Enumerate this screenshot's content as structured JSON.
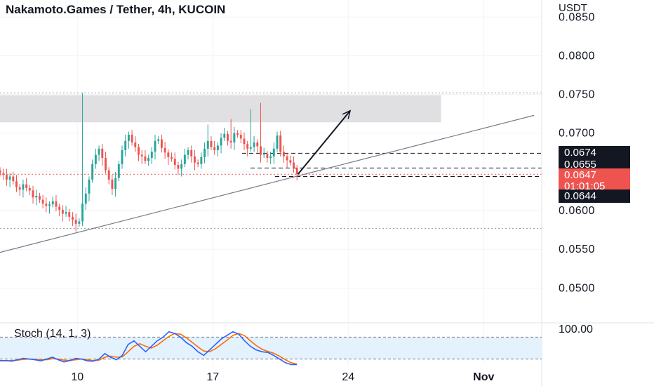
{
  "header": {
    "title": "Nakamoto.Games / Tether, 4h, KUCOIN",
    "currency": "USDT"
  },
  "indicator": {
    "label": "Stoch (14, 1, 3)"
  },
  "price_labels": {
    "upper": "0.0674",
    "mid": "0.0655",
    "last": "0.0647",
    "countdown": "01:01:05",
    "low": "0.0644"
  },
  "colors": {
    "up": "#26a69a",
    "down": "#ef5350",
    "k_line": "#2962ff",
    "d_line": "#ff6d00",
    "zone": "#e0e0e3",
    "stoch_band": "#e3f2fd"
  },
  "chart_data": {
    "type": "candlestick",
    "title": "Nakamoto.Games / Tether, 4h, KUCOIN",
    "price_axis": {
      "unit": "USDT",
      "range": [
        0.0455,
        0.0872
      ],
      "ticks": [
        "0.0850",
        "0.0800",
        "0.0750",
        "0.0700",
        "0.0650",
        "0.0600",
        "0.0550",
        "0.0500"
      ],
      "tick_values": [
        0.085,
        0.08,
        0.075,
        0.07,
        0.065,
        0.06,
        0.055,
        0.05
      ]
    },
    "time_axis": {
      "ticks": [
        "10",
        "17",
        "24",
        "Nov"
      ],
      "tick_day_index": [
        10,
        17,
        24,
        31
      ],
      "day_range": [
        6.0,
        34.0
      ]
    },
    "close_series_est": [
      0.0648,
      0.0646,
      0.064,
      0.0644,
      0.0638,
      0.063,
      0.0627,
      0.0634,
      0.0629,
      0.0626,
      0.0617,
      0.0619,
      0.0614,
      0.0609,
      0.0606,
      0.0608,
      0.0612,
      0.0605,
      0.0601,
      0.0596,
      0.0598,
      0.0592,
      0.0588,
      0.0583,
      0.0586,
      0.0609,
      0.0622,
      0.064,
      0.066,
      0.0672,
      0.068,
      0.0668,
      0.0652,
      0.064,
      0.0628,
      0.0642,
      0.066,
      0.0678,
      0.069,
      0.0698,
      0.0688,
      0.0682,
      0.0672,
      0.067,
      0.0664,
      0.0668,
      0.0676,
      0.069,
      0.0692,
      0.0681,
      0.0675,
      0.0669,
      0.0667,
      0.0659,
      0.0654,
      0.066,
      0.0672,
      0.0678,
      0.067,
      0.0662,
      0.066,
      0.0669,
      0.068,
      0.069,
      0.0682,
      0.0678,
      0.0684,
      0.0694,
      0.0699,
      0.069,
      0.0688,
      0.07,
      0.0698,
      0.0693,
      0.0686,
      0.068,
      0.0682,
      0.0688,
      0.0683,
      0.0672,
      0.0673,
      0.0668,
      0.067,
      0.068,
      0.0697,
      0.0676,
      0.067,
      0.0665,
      0.0662,
      0.0655,
      0.0647
    ],
    "levels": [
      {
        "label": "0.0674",
        "value": 0.0674,
        "style": "dashed"
      },
      {
        "label": "0.0655",
        "value": 0.0655,
        "style": "dashed"
      },
      {
        "label": "0.0647",
        "value": 0.0647,
        "style": "dotted",
        "color": "#ef5350"
      },
      {
        "label": "0.0644",
        "value": 0.0644,
        "style": "dashed"
      }
    ],
    "dotted_levels": [
      0.0752,
      0.0577
    ],
    "resistance_zone": {
      "from_day": 6.0,
      "to_day": 28.8,
      "low": 0.0714,
      "high": 0.0749
    },
    "trendline": {
      "from": {
        "day": 6.0,
        "price": 0.0546
      },
      "to": {
        "day": 33.6,
        "price": 0.0723
      }
    },
    "arrow": {
      "from": {
        "day": 21.4,
        "price": 0.0647
      },
      "to": {
        "day": 24.1,
        "price": 0.0729
      }
    },
    "stochastic": {
      "label": "Stoch (14, 1, 3)",
      "axis_label": "100.00",
      "band": [
        80,
        20
      ],
      "k_est": [
        15,
        16,
        14,
        18,
        22,
        20,
        18,
        15,
        20,
        25,
        18,
        12,
        16,
        22,
        20,
        15,
        14,
        20,
        35,
        25,
        18,
        30,
        60,
        70,
        55,
        40,
        55,
        70,
        80,
        95,
        90,
        80,
        65,
        55,
        40,
        30,
        45,
        60,
        75,
        85,
        95,
        88,
        70,
        55,
        45,
        40,
        38,
        30,
        20,
        10,
        5,
        5
      ],
      "d_est": [
        16,
        15,
        16,
        17,
        19,
        20,
        19,
        18,
        18,
        21,
        20,
        17,
        16,
        18,
        20,
        18,
        16,
        17,
        25,
        28,
        25,
        26,
        40,
        55,
        62,
        55,
        50,
        58,
        70,
        82,
        90,
        88,
        78,
        66,
        53,
        42,
        40,
        48,
        60,
        72,
        85,
        90,
        84,
        70,
        57,
        47,
        41,
        36,
        28,
        18,
        10,
        6
      ],
      "ylim": [
        0,
        100
      ]
    }
  }
}
